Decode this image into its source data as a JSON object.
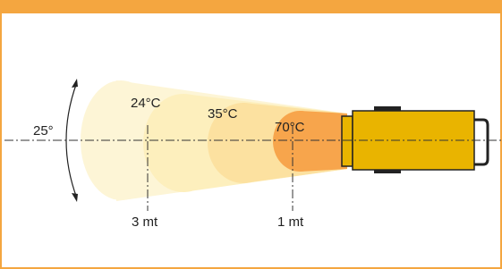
{
  "angle_label": "25°",
  "temperature_zones": [
    {
      "label": "24°C"
    },
    {
      "label": "35°C"
    },
    {
      "label": "70°C"
    }
  ],
  "distance_marks": [
    {
      "label": "3 mt"
    },
    {
      "label": "1 mt"
    }
  ]
}
